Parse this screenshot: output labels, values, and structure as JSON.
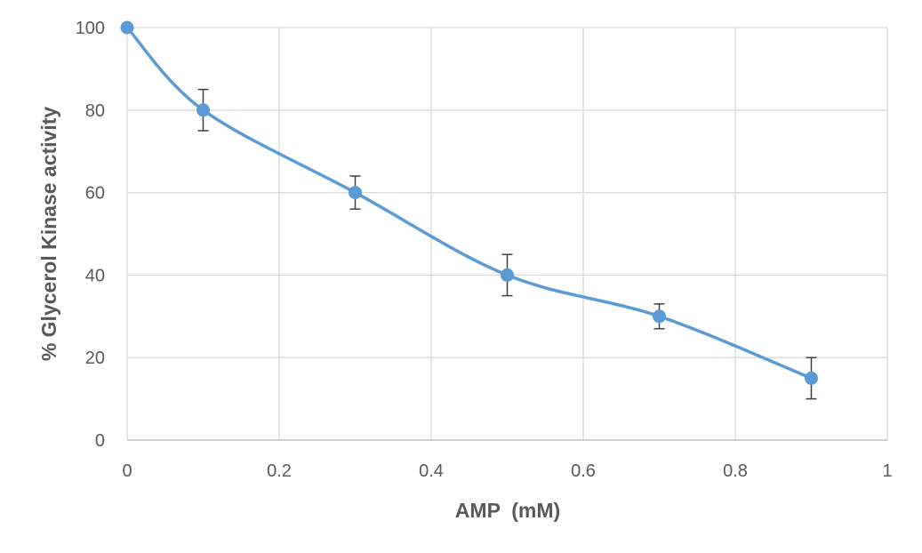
{
  "chart_data": {
    "type": "line",
    "title": "",
    "xlabel": "AMP  (mM)",
    "ylabel": "% Glycerol Kinase activity",
    "xlim": [
      0,
      1
    ],
    "ylim": [
      0,
      100
    ],
    "x_ticks": [
      "0",
      "0.2",
      "0.4",
      "0.6",
      "0.8",
      "1"
    ],
    "y_ticks": [
      "0",
      "20",
      "40",
      "60",
      "80",
      "100"
    ],
    "grid": true,
    "legend": "none",
    "smooth": true,
    "series": [
      {
        "color": "#5b9bd5",
        "x": [
          0,
          0.1,
          0.3,
          0.5,
          0.7,
          0.9
        ],
        "y": [
          100,
          80,
          60,
          40,
          30,
          15
        ],
        "error": [
          0,
          5,
          4,
          5,
          3,
          5
        ]
      }
    ]
  }
}
